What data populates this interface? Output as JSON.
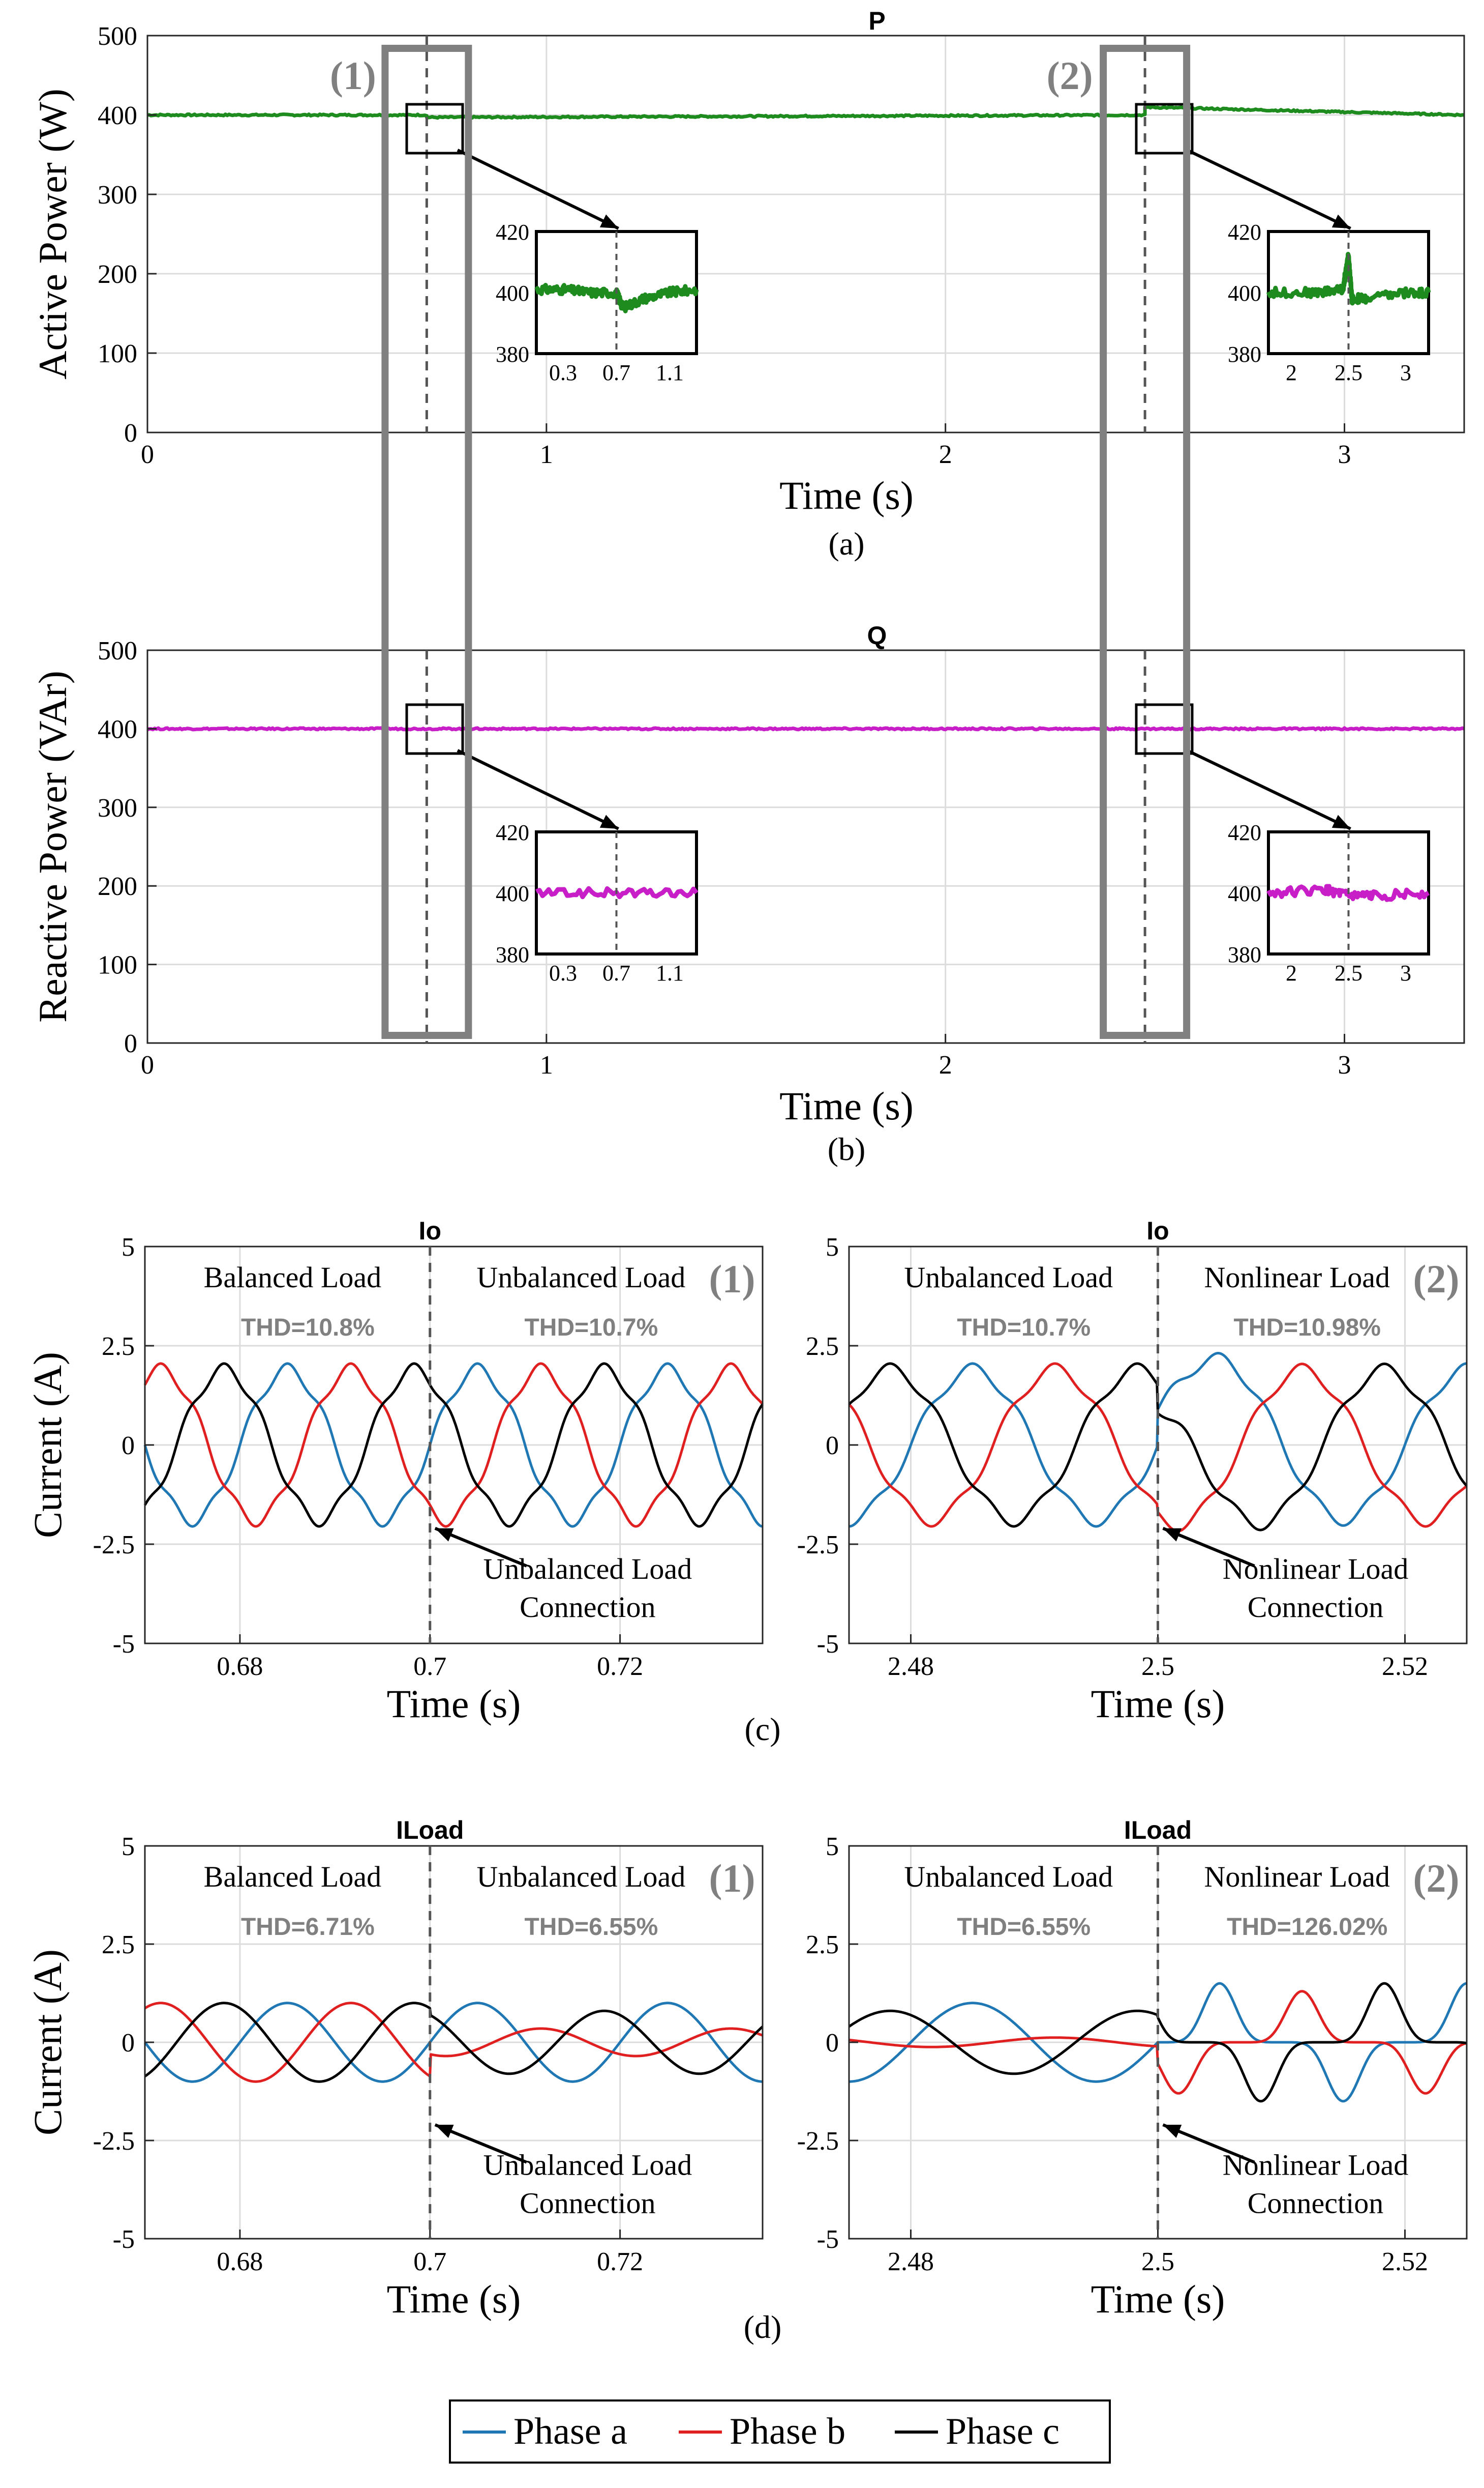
{
  "chart_data": [
    {
      "id": "a",
      "type": "line",
      "title": "P",
      "xlabel": "Time (s)",
      "ylabel": "Active Power (W)",
      "caption": "(a)",
      "xlim": [
        0,
        3.3
      ],
      "ylim": [
        0,
        500
      ],
      "xticks": [
        0,
        1,
        2,
        3
      ],
      "yticks": [
        0,
        100,
        200,
        300,
        400,
        500
      ],
      "grid": true,
      "series": [
        {
          "color": "#1e8b1e",
          "x": [
            0,
            0.7,
            0.7,
            2.5,
            2.5,
            3.3
          ],
          "y": [
            400,
            400,
            397,
            400,
            410,
            400
          ]
        }
      ],
      "events": [
        0.7,
        2.5
      ],
      "markers": [
        "(1)",
        "(2)"
      ],
      "insets": [
        {
          "xticks": [
            "0.3",
            "0.7",
            "1.1"
          ],
          "yticks": [
            380,
            400,
            420
          ],
          "xlim": [
            0.1,
            1.3
          ],
          "ylim": [
            380,
            420
          ],
          "event": 0.7,
          "x": [
            0.1,
            0.3,
            0.5,
            0.7,
            0.75,
            0.9,
            1.1,
            1.3
          ],
          "y": [
            401,
            401,
            400,
            400,
            395,
            398,
            400,
            401
          ]
        },
        {
          "xticks": [
            "2",
            "2.5",
            "3"
          ],
          "yticks": [
            380,
            400,
            420
          ],
          "xlim": [
            1.8,
            3.2
          ],
          "ylim": [
            380,
            420
          ],
          "event": 2.5,
          "x": [
            1.8,
            2.2,
            2.45,
            2.5,
            2.53,
            2.65,
            3.0,
            3.2
          ],
          "y": [
            400,
            400,
            401,
            412,
            398,
            398,
            400,
            400
          ]
        }
      ]
    },
    {
      "id": "b",
      "type": "line",
      "title": "Q",
      "xlabel": "Time (s)",
      "ylabel": "Reactive Power (VAr)",
      "caption": "(b)",
      "xlim": [
        0,
        3.3
      ],
      "ylim": [
        0,
        500
      ],
      "xticks": [
        0,
        1,
        2,
        3
      ],
      "yticks": [
        0,
        100,
        200,
        300,
        400,
        500
      ],
      "grid": true,
      "series": [
        {
          "color": "#c81ec8",
          "x": [
            0,
            0.7,
            2.5,
            3.3
          ],
          "y": [
            400,
            400,
            400,
            400
          ]
        }
      ],
      "events": [
        0.7,
        2.5
      ],
      "insets": [
        {
          "xticks": [
            "0.3",
            "0.7",
            "1.1"
          ],
          "yticks": [
            380,
            400,
            420
          ],
          "xlim": [
            0.1,
            1.3
          ],
          "ylim": [
            380,
            420
          ],
          "event": 0.7,
          "x": [
            0.1,
            0.7,
            1.3
          ],
          "y": [
            400,
            400,
            400
          ]
        },
        {
          "xticks": [
            "2",
            "2.5",
            "3"
          ],
          "yticks": [
            380,
            400,
            420
          ],
          "xlim": [
            1.8,
            3.2
          ],
          "ylim": [
            380,
            420
          ],
          "event": 2.5,
          "x": [
            1.8,
            2.3,
            2.5,
            2.7,
            3.2
          ],
          "y": [
            400,
            401,
            399,
            399,
            400
          ]
        }
      ]
    },
    {
      "id": "c",
      "caption": "(c)",
      "panels": [
        {
          "type": "line",
          "title": "Io",
          "xlabel": "Time (s)",
          "ylabel": "Current (A)",
          "xlim": [
            0.67,
            0.735
          ],
          "ylim": [
            -5,
            5
          ],
          "xticks": [
            "0.68",
            "0.7",
            "0.72"
          ],
          "yticks": [
            "-5",
            "-2.5",
            "0",
            "2.5",
            "5"
          ],
          "event": 0.7,
          "grid": true,
          "marker": "(1)",
          "left_label": "Balanced Load",
          "right_label": "Unbalanced Load",
          "left_thd": "THD=10.8%",
          "right_thd": "THD=10.7%",
          "annotation": [
            "Unbalanced Load",
            "Connection"
          ],
          "amplitude": 1.9,
          "series": [
            {
              "name": "Phase a",
              "color": "#1f77b4"
            },
            {
              "name": "Phase b",
              "color": "#e02020"
            },
            {
              "name": "Phase c",
              "color": "#000000"
            }
          ]
        },
        {
          "type": "line",
          "title": "Io",
          "xlabel": "Time (s)",
          "ylabel": "",
          "xlim": [
            2.475,
            2.525
          ],
          "ylim": [
            -5,
            5
          ],
          "xticks": [
            "2.48",
            "2.5",
            "2.52"
          ],
          "yticks": [
            "-5",
            "-2.5",
            "0",
            "2.5",
            "5"
          ],
          "event": 2.5,
          "grid": true,
          "marker": "(2)",
          "left_label": "Unbalanced Load",
          "right_label": "Nonlinear Load",
          "left_thd": "THD=10.7%",
          "right_thd": "THD=10.98%",
          "annotation": [
            "Nonlinear Load",
            "Connection"
          ],
          "amplitude": 1.9,
          "series": [
            {
              "name": "Phase a",
              "color": "#1f77b4"
            },
            {
              "name": "Phase b",
              "color": "#e02020"
            },
            {
              "name": "Phase c",
              "color": "#000000"
            }
          ]
        }
      ]
    },
    {
      "id": "d",
      "caption": "(d)",
      "panels": [
        {
          "type": "line",
          "title": "ILoad",
          "xlabel": "Time (s)",
          "ylabel": "Current (A)",
          "xlim": [
            0.67,
            0.735
          ],
          "ylim": [
            -5,
            5
          ],
          "xticks": [
            "0.68",
            "0.7",
            "0.72"
          ],
          "yticks": [
            "-5",
            "-2.5",
            "0",
            "2.5",
            "5"
          ],
          "event": 0.7,
          "grid": true,
          "marker": "(1)",
          "left_label": "Balanced Load",
          "right_label": "Unbalanced Load",
          "left_thd": "THD=6.71%",
          "right_thd": "THD=6.55%",
          "annotation": [
            "Unbalanced Load",
            "Connection"
          ],
          "amplitude": 1.0,
          "series": [
            {
              "name": "Phase a",
              "color": "#1f77b4"
            },
            {
              "name": "Phase b",
              "color": "#e02020"
            },
            {
              "name": "Phase c",
              "color": "#000000"
            }
          ]
        },
        {
          "type": "line",
          "title": "ILoad",
          "xlabel": "Time (s)",
          "ylabel": "",
          "xlim": [
            2.475,
            2.525
          ],
          "ylim": [
            -5,
            5
          ],
          "xticks": [
            "2.48",
            "2.5",
            "2.52"
          ],
          "yticks": [
            "-5",
            "-2.5",
            "0",
            "2.5",
            "5"
          ],
          "event": 2.5,
          "grid": true,
          "marker": "(2)",
          "left_label": "Unbalanced Load",
          "right_label": "Nonlinear Load",
          "left_thd": "THD=6.55%",
          "right_thd": "THD=126.02%",
          "annotation": [
            "Nonlinear Load",
            "Connection"
          ],
          "amplitude": 1.0,
          "series": [
            {
              "name": "Phase a",
              "color": "#1f77b4"
            },
            {
              "name": "Phase b",
              "color": "#e02020"
            },
            {
              "name": "Phase c",
              "color": "#000000"
            }
          ]
        }
      ]
    }
  ],
  "legend": [
    {
      "name": "Phase a",
      "color": "#1f77b4"
    },
    {
      "name": "Phase b",
      "color": "#e02020"
    },
    {
      "name": "Phase c",
      "color": "#000000"
    }
  ]
}
